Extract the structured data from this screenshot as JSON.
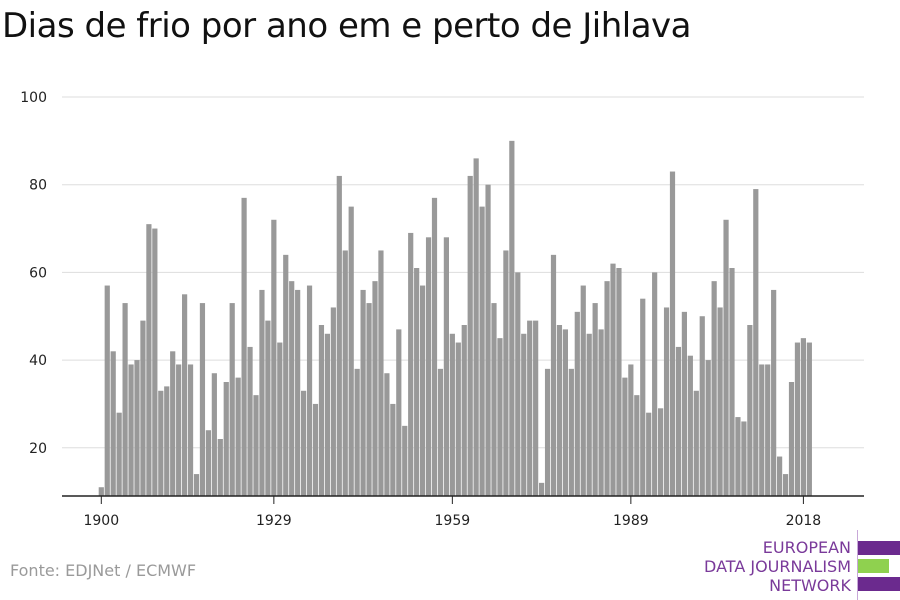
{
  "title": "Dias de frio por ano em e perto de Jihlava",
  "source": "Fonte: EDJNet / ECMWF",
  "logo": {
    "lines": [
      "EUROPEAN",
      "DATA JOURNALISM",
      "NETWORK"
    ],
    "colors": {
      "text": "#7a3a9a",
      "purple": "#6b2a8e",
      "green": "#8fd14f"
    }
  },
  "colors": {
    "bar": "#999999",
    "grid": "#dddddd",
    "axis": "#222222",
    "text": "#222222"
  },
  "chart_data": {
    "type": "bar",
    "title": "Dias de frio por ano em e perto de Jihlava",
    "xlabel": "",
    "ylabel": "",
    "ylim": [
      9,
      100
    ],
    "yticks": [
      20,
      40,
      60,
      80,
      100
    ],
    "xticks": [
      1900,
      1929,
      1959,
      1989,
      2018
    ],
    "grid": true,
    "categories": [
      1900,
      1901,
      1902,
      1903,
      1904,
      1905,
      1906,
      1907,
      1908,
      1909,
      1910,
      1911,
      1912,
      1913,
      1914,
      1915,
      1916,
      1917,
      1918,
      1919,
      1920,
      1921,
      1922,
      1923,
      1924,
      1925,
      1926,
      1927,
      1928,
      1929,
      1930,
      1931,
      1932,
      1933,
      1934,
      1935,
      1936,
      1937,
      1938,
      1939,
      1940,
      1941,
      1942,
      1943,
      1944,
      1945,
      1946,
      1947,
      1948,
      1949,
      1950,
      1951,
      1952,
      1953,
      1954,
      1955,
      1956,
      1957,
      1958,
      1959,
      1960,
      1961,
      1962,
      1963,
      1964,
      1965,
      1966,
      1967,
      1968,
      1969,
      1970,
      1971,
      1972,
      1973,
      1974,
      1975,
      1976,
      1977,
      1978,
      1979,
      1980,
      1981,
      1982,
      1983,
      1984,
      1985,
      1986,
      1987,
      1988,
      1989,
      1990,
      1991,
      1992,
      1993,
      1994,
      1995,
      1996,
      1997,
      1998,
      1999,
      2000,
      2001,
      2002,
      2003,
      2004,
      2005,
      2006,
      2007,
      2008,
      2009,
      2010,
      2011,
      2012,
      2013,
      2014,
      2015,
      2016,
      2017,
      2018,
      2019
    ],
    "values": [
      11,
      57,
      42,
      28,
      53,
      39,
      40,
      49,
      71,
      70,
      33,
      34,
      42,
      39,
      55,
      39,
      14,
      53,
      24,
      37,
      22,
      35,
      53,
      36,
      77,
      43,
      32,
      56,
      49,
      72,
      44,
      64,
      58,
      56,
      33,
      57,
      30,
      48,
      46,
      52,
      82,
      65,
      75,
      38,
      56,
      53,
      58,
      65,
      37,
      30,
      47,
      25,
      69,
      61,
      57,
      68,
      77,
      38,
      68,
      46,
      44,
      48,
      82,
      86,
      75,
      80,
      53,
      45,
      65,
      90,
      60,
      46,
      49,
      49,
      12,
      38,
      64,
      48,
      47,
      38,
      51,
      57,
      46,
      53,
      47,
      58,
      62,
      61,
      36,
      39,
      32,
      54,
      28,
      60,
      29,
      52,
      83,
      43,
      51,
      41,
      33,
      50,
      40,
      58,
      52,
      72,
      61,
      27,
      26,
      48,
      79,
      39,
      39,
      56,
      18,
      14,
      35,
      44,
      45,
      44
    ]
  }
}
